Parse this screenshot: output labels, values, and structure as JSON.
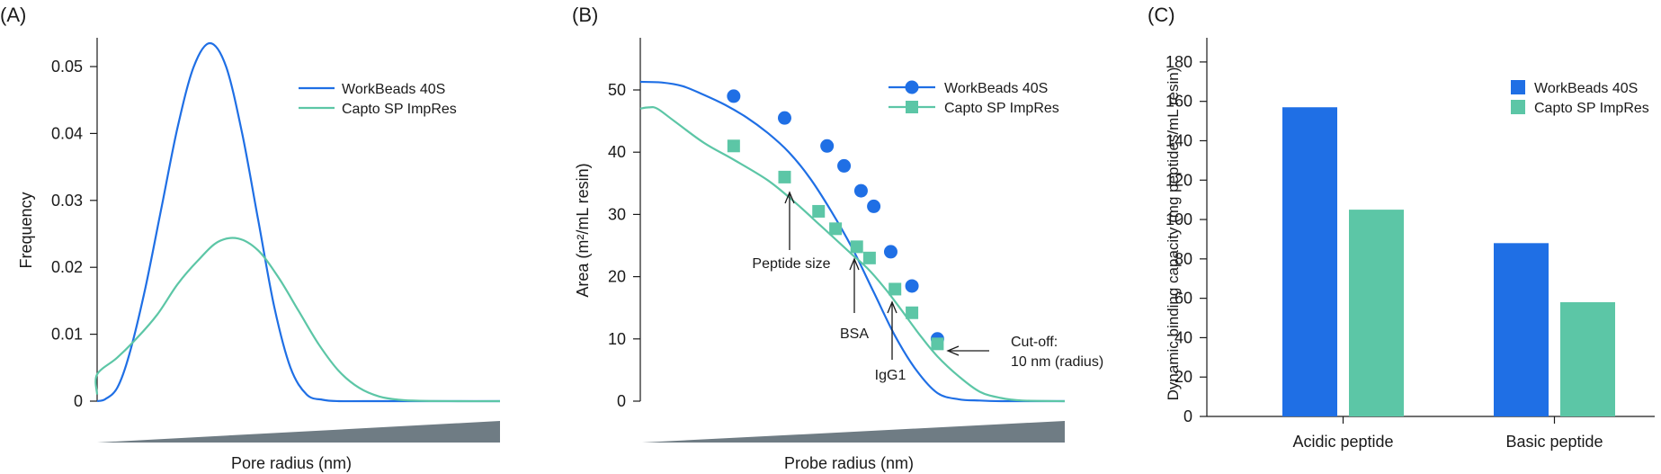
{
  "colors": {
    "workbeads": "#1f6fe5",
    "capto": "#5cc6a6",
    "wedge": "#6f7c84",
    "axis": "#1a1a1a"
  },
  "chart_data": [
    {
      "panel": "(A)",
      "type": "line",
      "xlabel": "Pore radius (nm)",
      "ylabel": "Frequency",
      "ylim": [
        0,
        0.05
      ],
      "yticks": [
        "0",
        "0.01",
        "0.02",
        "0.03",
        "0.04",
        "0.05"
      ],
      "xlim": [
        0,
        100
      ],
      "series": [
        {
          "name": "WorkBeads 40S",
          "color": "#1f6fe5",
          "x": [
            0,
            2,
            5,
            8,
            12,
            16,
            20,
            24,
            28,
            32,
            36,
            40,
            44,
            48,
            52,
            56,
            60,
            66,
            80,
            100
          ],
          "y": [
            0,
            0.0003,
            0.002,
            0.007,
            0.017,
            0.029,
            0.041,
            0.05,
            0.0535,
            0.05,
            0.04,
            0.027,
            0.014,
            0.005,
            0.001,
            0.0002,
            0,
            0,
            0,
            0
          ]
        },
        {
          "name": "Capto SP ImpRes",
          "color": "#5cc6a6",
          "x": [
            0,
            0,
            5,
            10,
            15,
            20,
            25,
            30,
            35,
            40,
            45,
            50,
            55,
            60,
            65,
            70,
            75,
            80,
            90,
            100
          ],
          "y": [
            0.001,
            0.004,
            0.0065,
            0.0095,
            0.013,
            0.0175,
            0.021,
            0.0238,
            0.0243,
            0.0225,
            0.0185,
            0.0135,
            0.0085,
            0.0045,
            0.002,
            0.0007,
            0.0002,
            5e-05,
            0,
            0
          ]
        }
      ]
    },
    {
      "panel": "(B)",
      "type": "line",
      "xlabel": "Probe radius (nm)",
      "ylabel": "Area (m²/mL resin)",
      "ylim": [
        0,
        50
      ],
      "yticks": [
        "0",
        "10",
        "20",
        "30",
        "40",
        "50"
      ],
      "xlim": [
        0,
        100
      ],
      "series": [
        {
          "name": "WorkBeads 40S",
          "color": "#1f6fe5",
          "marker": "circle",
          "curve_x": [
            0,
            5,
            10,
            15,
            20,
            25,
            30,
            35,
            40,
            45,
            50,
            55,
            60,
            65,
            70,
            75,
            80,
            85,
            90,
            95,
            100
          ],
          "curve_y": [
            51.3,
            51.2,
            50.6,
            49.2,
            47.6,
            45.6,
            43.1,
            40.0,
            35.8,
            30.5,
            24.5,
            17.5,
            10.5,
            5.0,
            1.3,
            0.3,
            0.1,
            0,
            0,
            0,
            0
          ],
          "points_x": [
            22,
            34,
            44,
            48,
            52,
            55,
            59,
            64,
            70
          ],
          "points_y": [
            49.0,
            45.5,
            41.0,
            37.8,
            33.8,
            31.3,
            24.0,
            18.5,
            10.0
          ]
        },
        {
          "name": "Capto SP ImpRes",
          "color": "#5cc6a6",
          "marker": "square",
          "curve_x": [
            0,
            2,
            4,
            8,
            15,
            22,
            30,
            36,
            42,
            46,
            50,
            54,
            58,
            62,
            66,
            70,
            75,
            80,
            85,
            90,
            100
          ],
          "curve_y": [
            47.0,
            47.2,
            47.0,
            45.0,
            41.5,
            38.8,
            35.5,
            32.2,
            28.5,
            26.0,
            23.5,
            21.0,
            17.8,
            14.2,
            10.5,
            7.2,
            4.0,
            1.5,
            0.5,
            0.1,
            0
          ],
          "points_x": [
            22,
            34,
            42,
            46,
            51,
            54,
            60,
            64,
            70
          ],
          "points_y": [
            41.0,
            36.0,
            30.5,
            27.7,
            24.8,
            23.0,
            18.0,
            14.2,
            9.2
          ]
        }
      ],
      "annotations": [
        {
          "text": "Peptide size"
        },
        {
          "text": "BSA"
        },
        {
          "text": "IgG1"
        },
        {
          "text": "Cut-off:",
          "text2": "10 nm (radius)"
        }
      ]
    },
    {
      "panel": "(C)",
      "type": "bar",
      "ylabel": "Dynamic binding capacity (mg peptides/mL resin)",
      "ylim": [
        0,
        190
      ],
      "yticks": [
        "0",
        "20",
        "40",
        "60",
        "80",
        "100",
        "120",
        "140",
        "160",
        "180"
      ],
      "categories": [
        "Acidic peptide",
        "Basic peptide"
      ],
      "series": [
        {
          "name": "WorkBeads 40S",
          "color": "#1f6fe5",
          "values": [
            157,
            88
          ]
        },
        {
          "name": "Capto SP ImpRes",
          "color": "#5cc6a6",
          "values": [
            105,
            58
          ]
        }
      ]
    }
  ]
}
